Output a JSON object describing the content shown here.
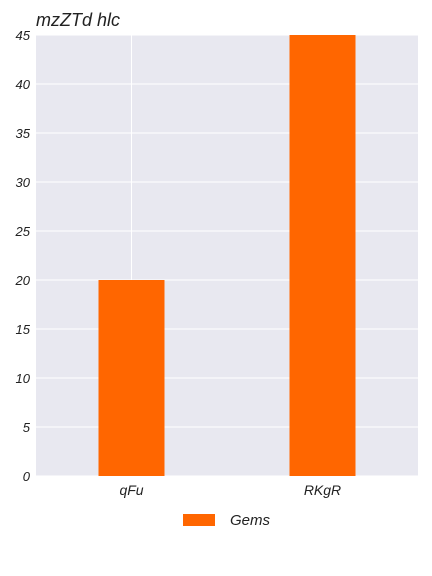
{
  "chart_data": {
    "type": "bar",
    "title": "mzZTd hlc",
    "xlabel": "",
    "ylabel": "",
    "categories": [
      "qFu",
      "RKgR"
    ],
    "series": [
      {
        "name": "Gems",
        "values": [
          20,
          45
        ],
        "color": "#ff6600"
      }
    ],
    "ylim": [
      0,
      45
    ],
    "yticks": [
      0,
      5,
      10,
      15,
      20,
      25,
      30,
      35,
      40,
      45
    ],
    "grid": true,
    "background": "#e8e8f0",
    "legend_position": "bottom-center"
  }
}
